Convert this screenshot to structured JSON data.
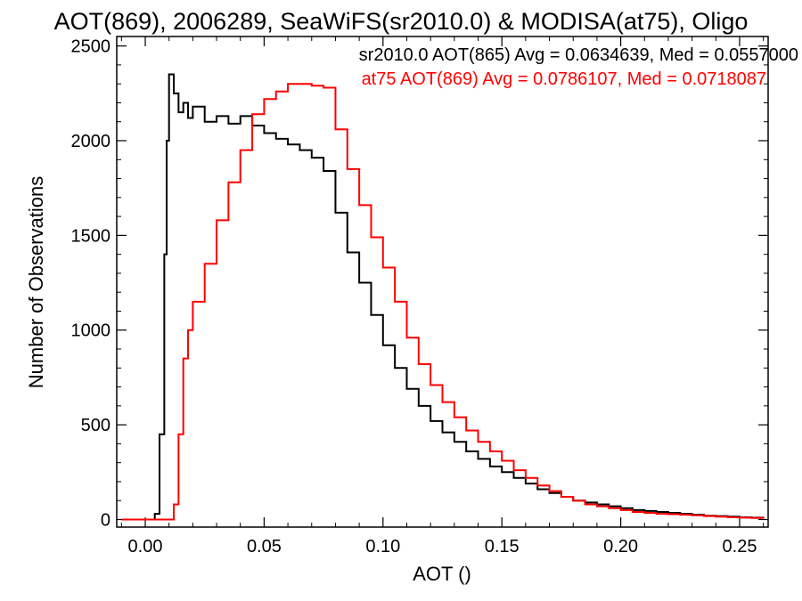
{
  "chart_data": {
    "type": "line",
    "title": "AOT(869), 2006289, SeaWiFS(sr2010.0) & MODISA(at75), Oligo",
    "xlabel": "AOT ()",
    "ylabel": "Number of Observations",
    "xlim": [
      -0.012,
      0.262
    ],
    "ylim": [
      -40,
      2550
    ],
    "xticks": [
      0.0,
      0.05,
      0.1,
      0.15,
      0.2,
      0.25
    ],
    "xtick_labels": [
      "0.00",
      "0.05",
      "0.10",
      "0.15",
      "0.20",
      "0.25"
    ],
    "yticks": [
      0,
      500,
      1000,
      1500,
      2000,
      2500
    ],
    "ytick_labels": [
      "0",
      "500",
      "1000",
      "1500",
      "2000",
      "2500"
    ],
    "grid": false,
    "x": [
      -0.01,
      -0.005,
      0.0,
      0.004,
      0.006,
      0.008,
      0.009,
      0.01,
      0.012,
      0.014,
      0.016,
      0.018,
      0.02,
      0.025,
      0.03,
      0.035,
      0.04,
      0.045,
      0.05,
      0.055,
      0.06,
      0.065,
      0.07,
      0.075,
      0.08,
      0.085,
      0.09,
      0.095,
      0.1,
      0.105,
      0.11,
      0.115,
      0.12,
      0.125,
      0.13,
      0.135,
      0.14,
      0.145,
      0.15,
      0.155,
      0.16,
      0.165,
      0.17,
      0.175,
      0.18,
      0.185,
      0.19,
      0.195,
      0.2,
      0.205,
      0.21,
      0.215,
      0.22,
      0.225,
      0.23,
      0.235,
      0.24,
      0.245,
      0.25,
      0.255,
      0.26
    ],
    "series": [
      {
        "name": "sr2010.0 AOT(865) Avg = 0.0634639, Med = 0.0557000",
        "color": "#000000",
        "values": [
          0,
          0,
          0,
          30,
          450,
          1400,
          2000,
          2350,
          2250,
          2150,
          2200,
          2120,
          2180,
          2100,
          2130,
          2090,
          2130,
          2080,
          2040,
          2010,
          1980,
          1950,
          1910,
          1840,
          1620,
          1410,
          1250,
          1080,
          920,
          800,
          690,
          600,
          520,
          460,
          410,
          360,
          320,
          280,
          250,
          220,
          190,
          160,
          140,
          120,
          100,
          90,
          80,
          70,
          60,
          50,
          45,
          40,
          35,
          30,
          25,
          20,
          18,
          15,
          12,
          10,
          8
        ]
      },
      {
        "name": "at75 AOT(869) Avg = 0.0786107, Med = 0.0718087",
        "color": "#ff0000",
        "values": [
          0,
          0,
          0,
          0,
          0,
          0,
          0,
          0,
          80,
          450,
          850,
          1000,
          1150,
          1350,
          1580,
          1780,
          1950,
          2140,
          2220,
          2260,
          2300,
          2300,
          2290,
          2280,
          2060,
          1850,
          1660,
          1490,
          1330,
          1150,
          960,
          820,
          710,
          620,
          540,
          470,
          410,
          360,
          310,
          260,
          220,
          180,
          150,
          120,
          100,
          80,
          70,
          60,
          50,
          40,
          35,
          30,
          28,
          25,
          22,
          18,
          15,
          12,
          10,
          8,
          6
        ]
      }
    ],
    "legend": "top-right",
    "legend_entries": [
      {
        "text": "sr2010.0 AOT(865) Avg = 0.0634639, Med = 0.0557000",
        "color": "#000000"
      },
      {
        "text": "at75 AOT(869) Avg = 0.0786107, Med = 0.0718087",
        "color": "#ff0000"
      }
    ]
  }
}
